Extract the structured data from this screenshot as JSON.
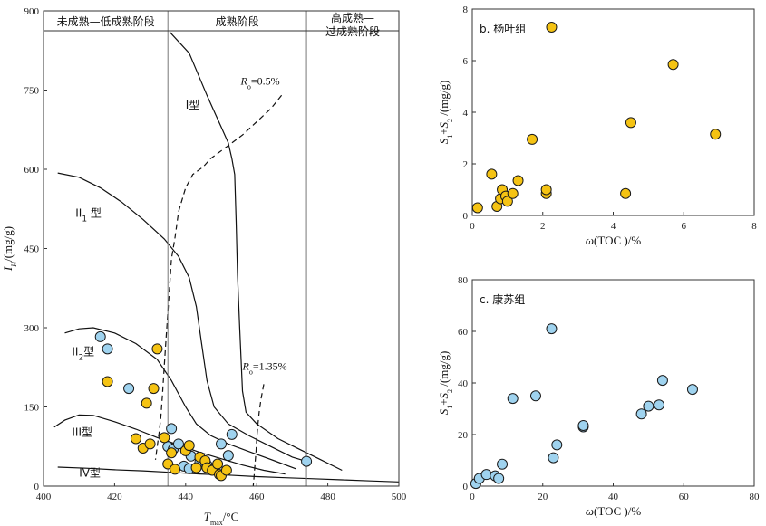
{
  "chart_data": [
    {
      "id": "a",
      "type": "scatter",
      "xlabel": "Tmax/°C",
      "ylabel": "IH/(mg/g)",
      "xlim": [
        400,
        500
      ],
      "ylim": [
        0,
        900
      ],
      "xticks": [
        400,
        420,
        440,
        460,
        480,
        500
      ],
      "yticks": [
        0,
        150,
        300,
        450,
        600,
        750,
        900
      ],
      "grid": false,
      "zones": [
        {
          "label": "未成熟—低成熟阶段",
          "x_range": [
            400,
            435
          ]
        },
        {
          "label": "成熟阶段",
          "x_range": [
            435,
            474
          ]
        },
        {
          "label_lines": [
            "高成熟—",
            "过成熟阶段"
          ],
          "x_range": [
            474,
            500
          ]
        }
      ],
      "boundaries_x": [
        435,
        474
      ],
      "type_labels": [
        {
          "text": "I型",
          "x": 440,
          "y": 715
        },
        {
          "text": "II",
          "sub": "1",
          "suffix": " 型",
          "x": 409,
          "y": 510
        },
        {
          "text": "II",
          "sub": "2",
          "suffix": "型",
          "x": 408,
          "y": 248
        },
        {
          "text": "III型",
          "x": 408,
          "y": 95
        },
        {
          "text": "IV型",
          "x": 410,
          "y": 18
        }
      ],
      "ro_labels": [
        {
          "text": "R",
          "sub": "o",
          "rest": "=0.5%",
          "x": 455.5,
          "y": 760
        },
        {
          "text": "R",
          "sub": "o",
          "rest": "=1.35%",
          "x": 456,
          "y": 220
        }
      ],
      "curves": [
        {
          "name": "I",
          "style": "solid",
          "points": [
            [
              435.5,
              860
            ],
            [
              441,
              820
            ],
            [
              446,
              740
            ],
            [
              450,
              680
            ],
            [
              452,
              650
            ],
            [
              453,
              620
            ],
            [
              453.8,
              590
            ],
            [
              454.2,
              500
            ],
            [
              454.6,
              400
            ],
            [
              455.2,
              300
            ],
            [
              456,
              180
            ],
            [
              457,
              140
            ],
            [
              460,
              118
            ],
            [
              466,
              90
            ],
            [
              472,
              70
            ],
            [
              478,
              50
            ],
            [
              484,
              30
            ]
          ]
        },
        {
          "name": "II1",
          "style": "solid",
          "points": [
            [
              404,
              593
            ],
            [
              410,
              585
            ],
            [
              416,
              565
            ],
            [
              422,
              538
            ],
            [
              428,
              505
            ],
            [
              434,
              468
            ],
            [
              438,
              435
            ],
            [
              441,
              395
            ],
            [
              443,
              340
            ],
            [
              444.5,
              270
            ],
            [
              446,
              200
            ],
            [
              448,
              150
            ],
            [
              452,
              118
            ],
            [
              458,
              95
            ],
            [
              464,
              75
            ],
            [
              470,
              55
            ],
            [
              475,
              45
            ]
          ]
        },
        {
          "name": "II2",
          "style": "solid",
          "points": [
            [
              406,
              290
            ],
            [
              410,
              298
            ],
            [
              414,
              300
            ],
            [
              420,
              290
            ],
            [
              426,
              270
            ],
            [
              432,
              240
            ],
            [
              436,
              200
            ],
            [
              440,
              150
            ],
            [
              443,
              118
            ],
            [
              447,
              96
            ],
            [
              452,
              80
            ],
            [
              458,
              65
            ],
            [
              465,
              48
            ],
            [
              471,
              33
            ]
          ]
        },
        {
          "name": "III",
          "style": "solid",
          "points": [
            [
              403,
              112
            ],
            [
              406,
              125
            ],
            [
              410,
              135
            ],
            [
              414,
              134
            ],
            [
              420,
              122
            ],
            [
              426,
              108
            ],
            [
              432,
              92
            ],
            [
              438,
              78
            ],
            [
              444,
              64
            ],
            [
              450,
              52
            ],
            [
              456,
              40
            ],
            [
              462,
              30
            ],
            [
              468,
              23
            ]
          ]
        },
        {
          "name": "IV",
          "style": "solid",
          "points": [
            [
              404,
              36
            ],
            [
              412,
              34
            ],
            [
              420,
              31
            ],
            [
              428,
              29
            ],
            [
              436,
              26
            ],
            [
              444,
              23
            ],
            [
              452,
              21
            ],
            [
              460,
              18
            ],
            [
              468,
              16
            ],
            [
              476,
              14
            ],
            [
              484,
              12
            ],
            [
              492,
              10
            ],
            [
              500,
              8
            ]
          ]
        },
        {
          "name": "Ro0.5",
          "style": "dashed",
          "points": [
            [
              467,
              740
            ],
            [
              464,
              715
            ],
            [
              460,
              690
            ],
            [
              456,
              665
            ],
            [
              451,
              640
            ],
            [
              447,
              620
            ],
            [
              445,
              605
            ],
            [
              442,
              590
            ],
            [
              440,
              565
            ],
            [
              438,
              520
            ],
            [
              437,
              470
            ],
            [
              436,
              430
            ],
            [
              435.5,
              380
            ],
            [
              435,
              330
            ],
            [
              434.5,
              280
            ],
            [
              434,
              230
            ],
            [
              433.5,
              175
            ],
            [
              433,
              130
            ],
            [
              432.5,
              100
            ],
            [
              432,
              75
            ],
            [
              431.5,
              50
            ]
          ]
        },
        {
          "name": "Ro1.35",
          "style": "dashed",
          "points": [
            [
              462,
              193
            ],
            [
              461.2,
              165
            ],
            [
              460.7,
              140
            ],
            [
              460.3,
              115
            ],
            [
              460,
              90
            ],
            [
              459.8,
              65
            ],
            [
              459.5,
              40
            ],
            [
              459.2,
              15
            ],
            [
              459,
              0
            ]
          ]
        }
      ],
      "series": [
        {
          "color": "#9fd3ef",
          "points": [
            [
              416,
              283
            ],
            [
              418,
              260
            ],
            [
              424,
              185
            ],
            [
              436,
              109
            ],
            [
              435,
              75
            ],
            [
              436.5,
              70
            ],
            [
              438,
              80
            ],
            [
              439.5,
              38
            ],
            [
              441,
              33
            ],
            [
              441.5,
              57
            ],
            [
              444,
              45
            ],
            [
              446,
              40
            ],
            [
              450,
              80
            ],
            [
              452,
              58
            ],
            [
              453,
              98
            ],
            [
              474,
              47
            ]
          ]
        },
        {
          "color": "#f5c313",
          "points": [
            [
              418,
              198
            ],
            [
              426,
              90
            ],
            [
              428,
              72
            ],
            [
              429,
              157
            ],
            [
              430,
              80
            ],
            [
              431,
              185
            ],
            [
              432,
              260
            ],
            [
              434,
              92
            ],
            [
              435,
              42
            ],
            [
              436,
              63
            ],
            [
              437,
              32
            ],
            [
              440,
              67
            ],
            [
              441,
              77
            ],
            [
              443,
              35
            ],
            [
              444,
              55
            ],
            [
              445.5,
              48
            ],
            [
              446,
              35
            ],
            [
              447.5,
              30
            ],
            [
              449,
              42
            ],
            [
              449.5,
              22
            ],
            [
              450,
              20
            ],
            [
              451.5,
              30
            ]
          ]
        }
      ]
    },
    {
      "id": "b",
      "type": "scatter",
      "title": "b. 杨叶组",
      "xlabel": "ω(TOC )/%",
      "ylabel": "S1+S2 /(mg/g)",
      "xlim": [
        0,
        8
      ],
      "ylim": [
        0,
        8
      ],
      "xticks": [
        0,
        2,
        4,
        6,
        8
      ],
      "yticks": [
        0,
        2,
        4,
        6,
        8
      ],
      "grid": false,
      "series": [
        {
          "color": "#f5c313",
          "points": [
            [
              0.15,
              0.3
            ],
            [
              0.55,
              1.6
            ],
            [
              0.7,
              0.35
            ],
            [
              0.8,
              0.65
            ],
            [
              0.85,
              1.0
            ],
            [
              0.95,
              0.75
            ],
            [
              1.0,
              0.55
            ],
            [
              1.15,
              0.85
            ],
            [
              1.3,
              1.35
            ],
            [
              1.7,
              2.95
            ],
            [
              2.1,
              0.85
            ],
            [
              2.1,
              1.0
            ],
            [
              2.25,
              7.3
            ],
            [
              4.35,
              0.85
            ],
            [
              4.5,
              3.6
            ],
            [
              5.7,
              5.85
            ],
            [
              6.9,
              3.15
            ]
          ]
        }
      ]
    },
    {
      "id": "c",
      "type": "scatter",
      "title": "c. 康苏组",
      "xlabel": "ω(TOC )/%",
      "ylabel": "S1+S2 /(mg/g)",
      "xlim": [
        0,
        80
      ],
      "ylim": [
        0,
        80
      ],
      "xticks": [
        0,
        20,
        40,
        60,
        80
      ],
      "yticks": [
        0,
        20,
        40,
        60,
        80
      ],
      "grid": false,
      "series": [
        {
          "color": "#9fd3ef",
          "points": [
            [
              1,
              1
            ],
            [
              2,
              3
            ],
            [
              4,
              4.5
            ],
            [
              6.5,
              4
            ],
            [
              7.5,
              3
            ],
            [
              8.5,
              8.5
            ],
            [
              11.5,
              34
            ],
            [
              18,
              35
            ],
            [
              22.5,
              61
            ],
            [
              23,
              11
            ],
            [
              24,
              16
            ],
            [
              31.5,
              23
            ],
            [
              31.5,
              23.5
            ],
            [
              48,
              28
            ],
            [
              50,
              31
            ],
            [
              53,
              31.5
            ],
            [
              54,
              41
            ],
            [
              62.5,
              37.5
            ]
          ]
        }
      ]
    }
  ]
}
